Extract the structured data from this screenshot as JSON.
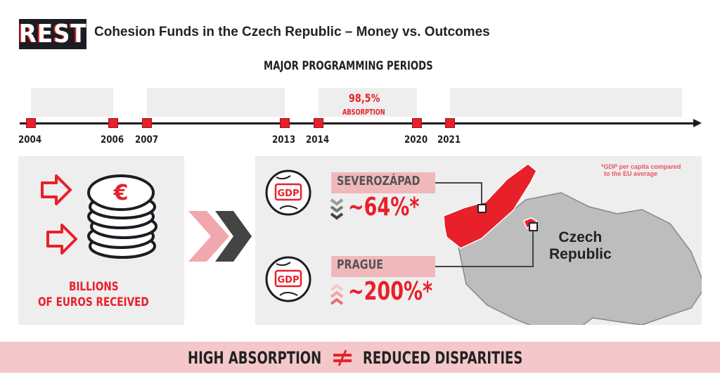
{
  "header": {
    "logo": "REST",
    "title": "Cohesion Funds in the Czech Republic – Money vs. Outcomes"
  },
  "timeline": {
    "heading": "MAJOR PROGRAMMING PERIODS",
    "years": [
      "2004",
      "2006",
      "2007",
      "2013",
      "2014",
      "2020",
      "2021"
    ],
    "absorption_value": "98,5%",
    "absorption_label": "ABSORPTION"
  },
  "left_panel": {
    "line1": "BILLIONS",
    "line2": "OF EUROS RECEIVED",
    "icons": [
      "arrow-right-icon",
      "euro-coins-icon"
    ]
  },
  "right_panel": {
    "regions": [
      {
        "name": "SEVEROZÁPAD",
        "icon": "gdp-globe-icon",
        "trend": "down",
        "value": "~64%*"
      },
      {
        "name": "PRAGUE",
        "icon": "gdp-globe-icon",
        "trend": "up",
        "value": "~200%*"
      }
    ],
    "gdp_badge": "GDP",
    "footnote_line1": "*GDP per capita compared",
    "footnote_line2": "to the EU average",
    "map_label_line1": "Czech",
    "map_label_line2": "Republic"
  },
  "banner": {
    "left": "HIGH ABSORPTION",
    "right": "REDUCED DISPARITIES",
    "symbol": "not-equal-icon"
  },
  "colors": {
    "accent": "#e8202a",
    "dark": "#1c1c22",
    "panel": "#eeeeee",
    "pink": "#f4c8cb",
    "map": "#bdbdbd"
  }
}
